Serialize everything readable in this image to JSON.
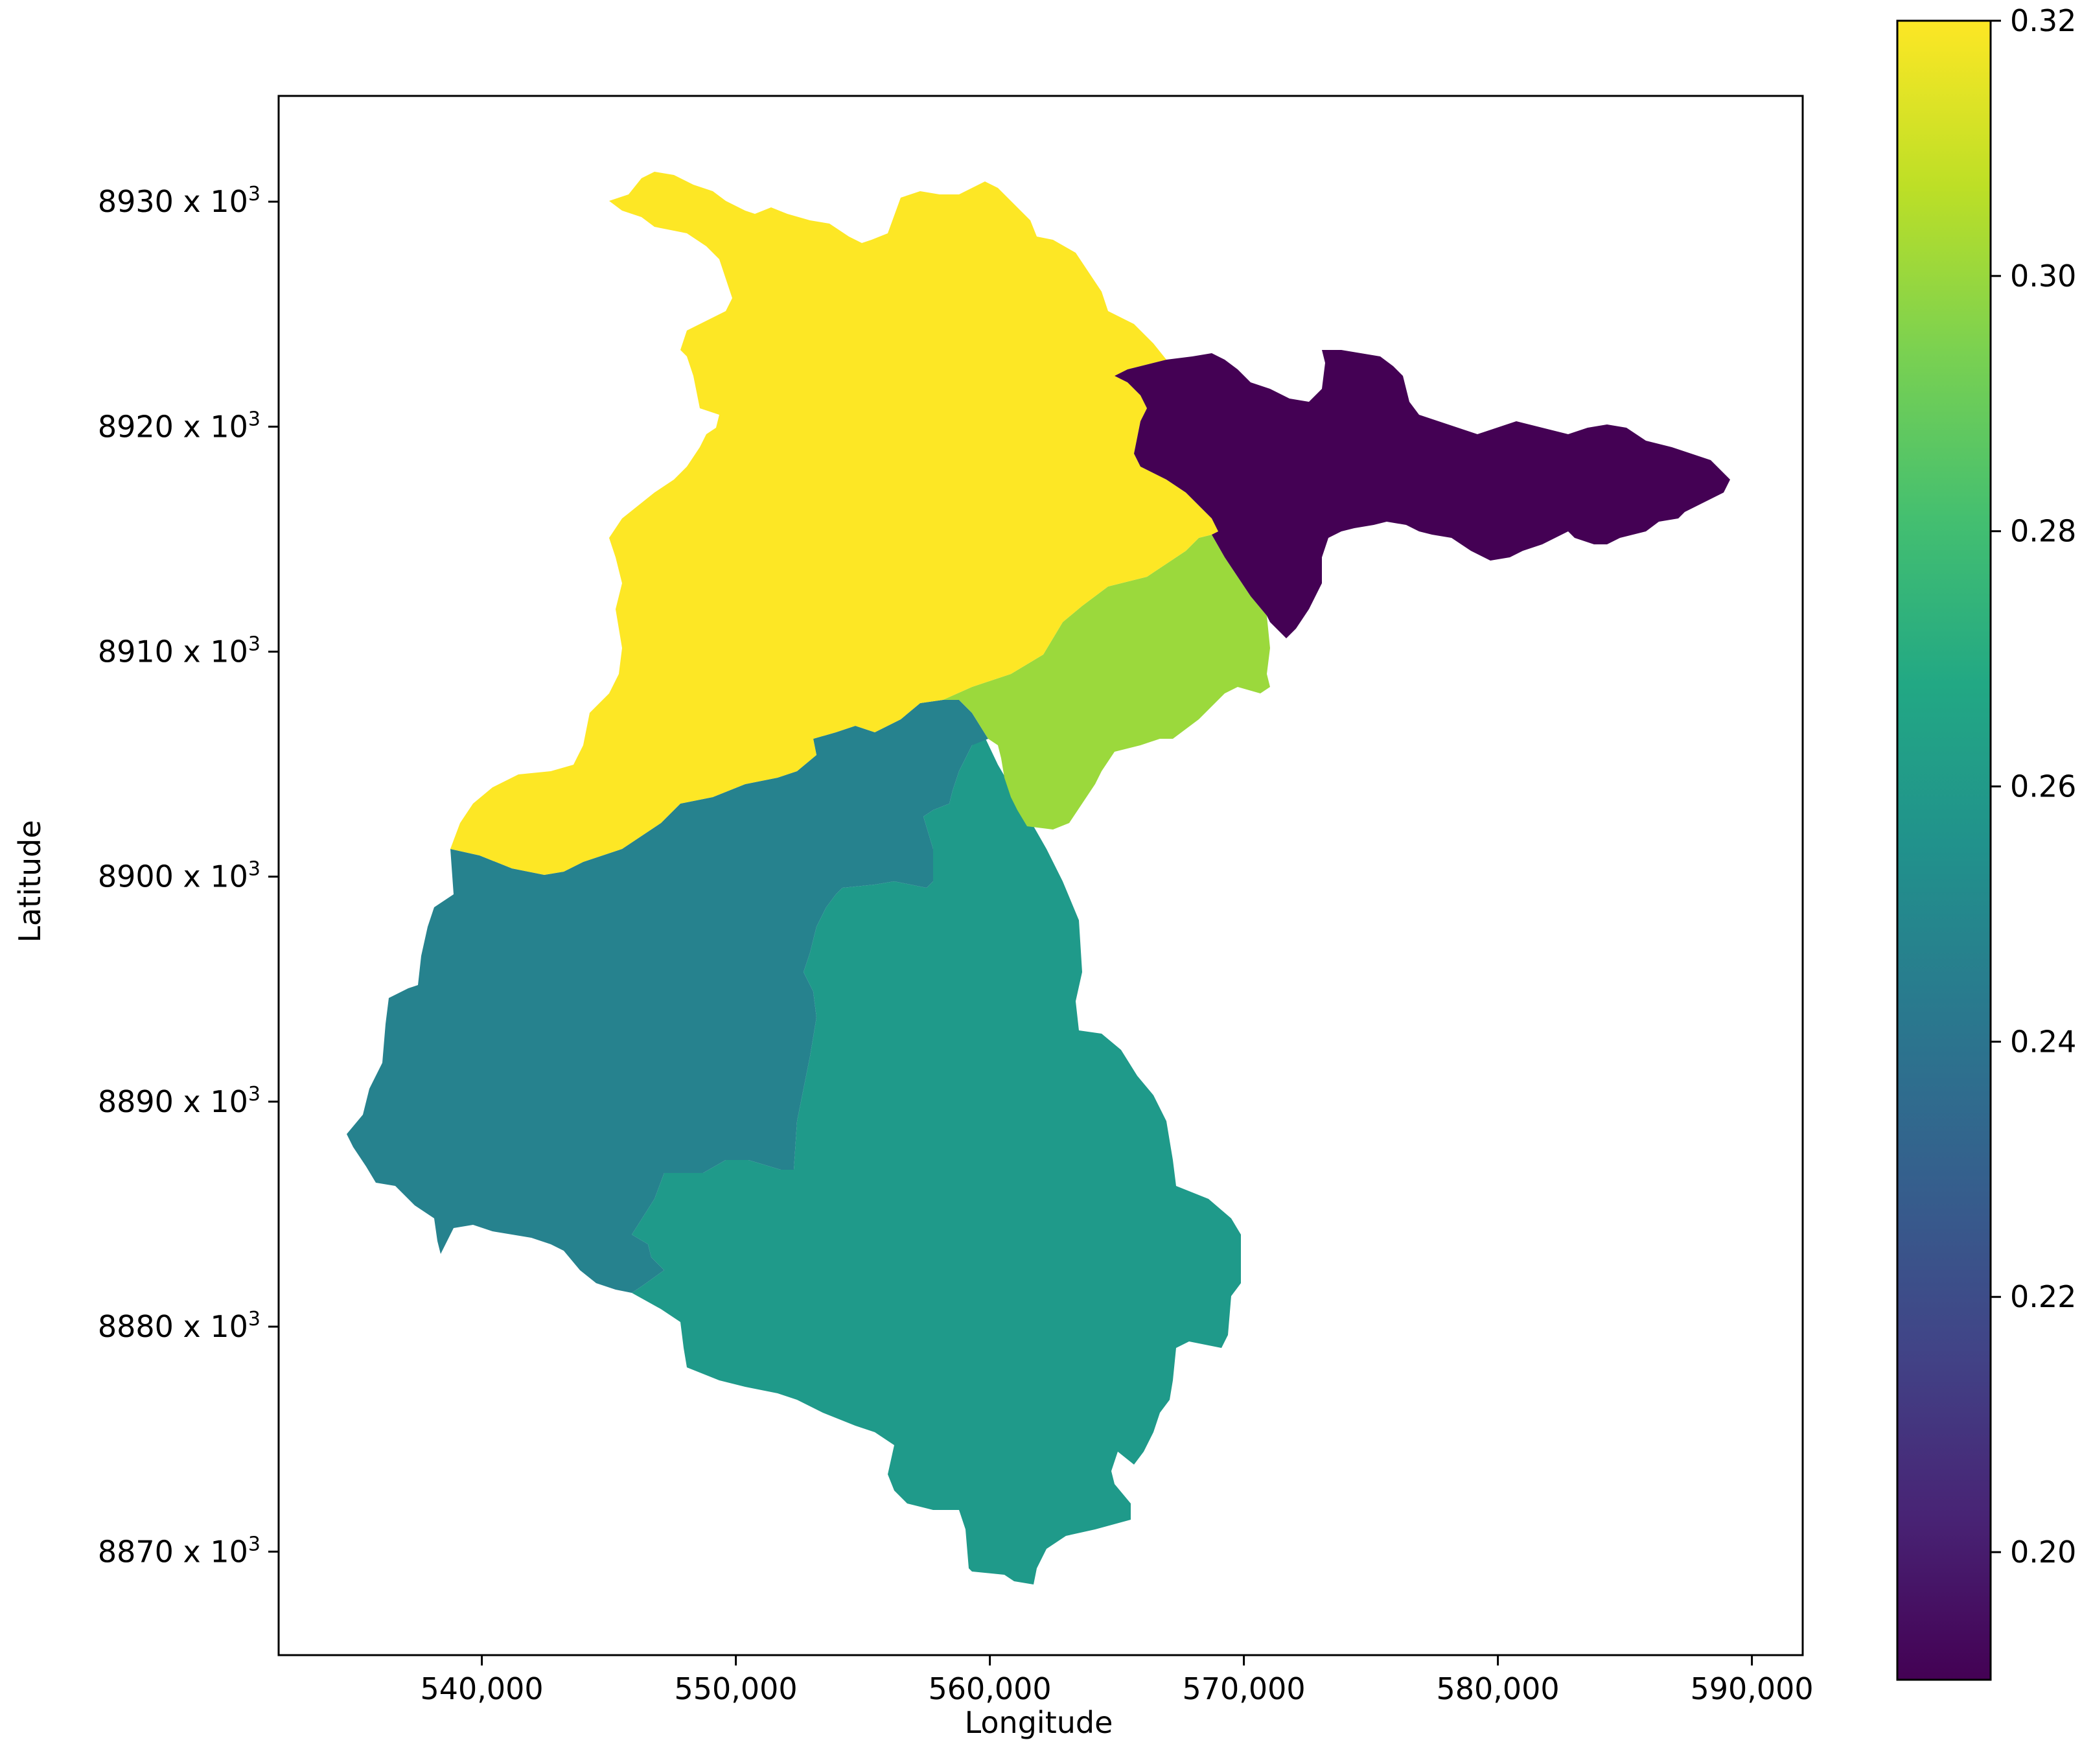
{
  "chart_data": {
    "type": "choropleth",
    "xlabel": "Longitude",
    "ylabel": "Latitude",
    "xlim": [
      532000,
      592000
    ],
    "ylim": [
      8865400,
      8934700
    ],
    "x_ticks": [
      {
        "value": 540000,
        "label": "540,000"
      },
      {
        "value": 550000,
        "label": "550,000"
      },
      {
        "value": 560000,
        "label": "560,000"
      },
      {
        "value": 570000,
        "label": "570,000"
      },
      {
        "value": 580000,
        "label": "580,000"
      },
      {
        "value": 590000,
        "label": "590,000"
      }
    ],
    "y_ticks": [
      {
        "value": 8930000,
        "label": "8930 x 10",
        "exp": "3"
      },
      {
        "value": 8920000,
        "label": "8920 x 10",
        "exp": "3"
      },
      {
        "value": 8910000,
        "label": "8910 x 10",
        "exp": "3"
      },
      {
        "value": 8900000,
        "label": "8900 x 10",
        "exp": "3"
      },
      {
        "value": 8890000,
        "label": "8890 x 10",
        "exp": "3"
      },
      {
        "value": 8880000,
        "label": "8880 x 10",
        "exp": "3"
      },
      {
        "value": 8870000,
        "label": "8870 x 10",
        "exp": "3"
      }
    ],
    "colorbar": {
      "colormap": "viridis",
      "range": [
        0.19,
        0.32
      ],
      "ticks": [
        {
          "value": 0.2,
          "label": "0.20"
        },
        {
          "value": 0.22,
          "label": "0.22"
        },
        {
          "value": 0.24,
          "label": "0.24"
        },
        {
          "value": 0.26,
          "label": "0.26"
        },
        {
          "value": 0.28,
          "label": "0.28"
        },
        {
          "value": 0.3,
          "label": "0.30"
        },
        {
          "value": 0.32,
          "label": "0.32"
        }
      ]
    },
    "regions": [
      {
        "id": "north",
        "value": 0.32,
        "color": "#fde725"
      },
      {
        "id": "northeast",
        "value": 0.19,
        "color": "#440154"
      },
      {
        "id": "central-east",
        "value": 0.305,
        "color": "#9bd93c"
      },
      {
        "id": "west",
        "value": 0.245,
        "color": "#26828e"
      },
      {
        "id": "south",
        "value": 0.26,
        "color": "#1f9a8a"
      }
    ]
  }
}
